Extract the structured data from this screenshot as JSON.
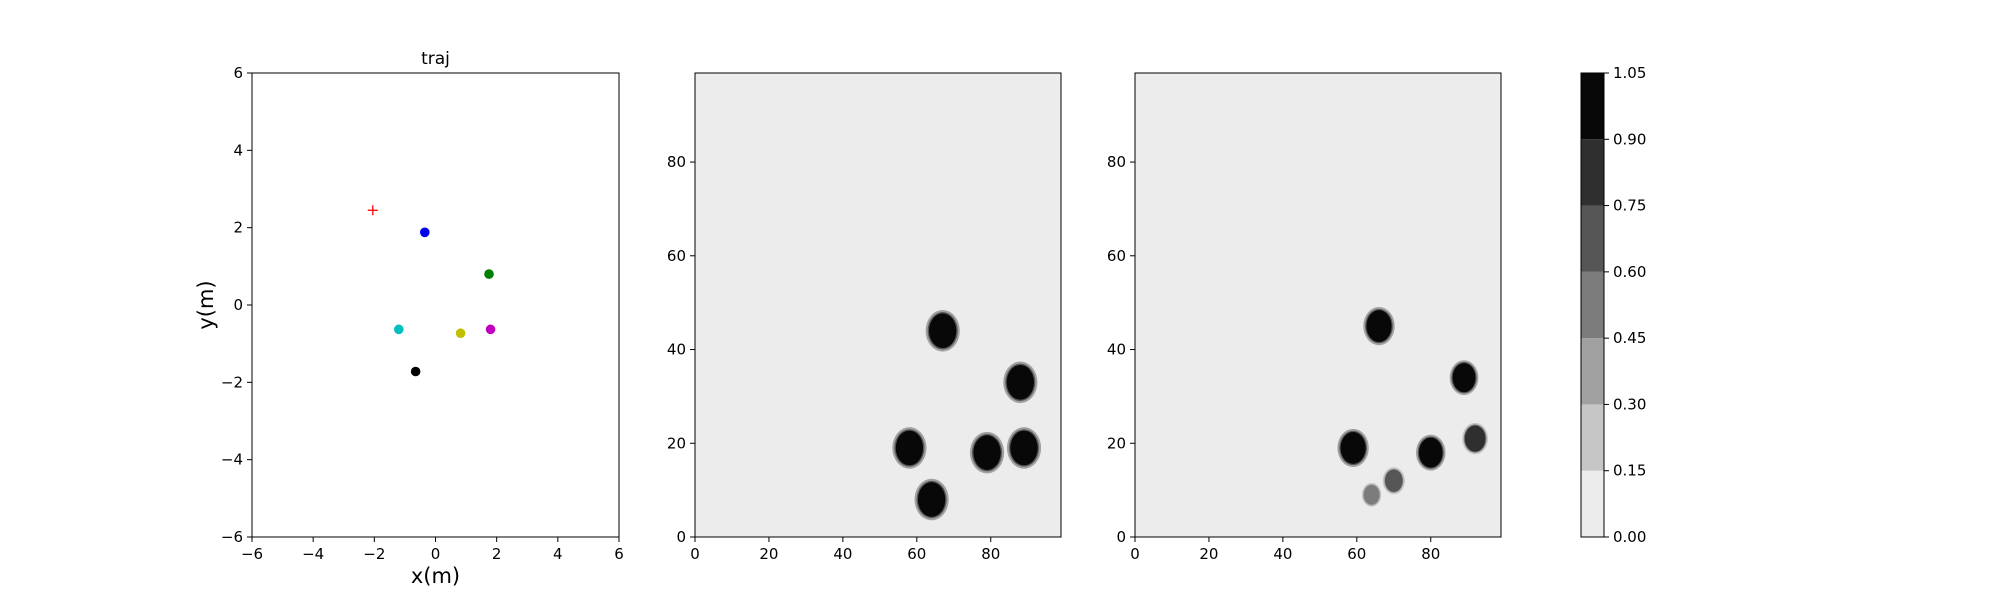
{
  "chart_data": [
    {
      "type": "scatter",
      "title": "traj",
      "xlabel": "x(m)",
      "ylabel": "y(m)",
      "xlim": [
        -6,
        6
      ],
      "ylim": [
        -6,
        6
      ],
      "xticks": [
        -6,
        -4,
        -2,
        0,
        2,
        4,
        6
      ],
      "yticks": [
        -6,
        -4,
        -2,
        0,
        2,
        4,
        6
      ],
      "tick_labels_x": [
        "−6",
        "−4",
        "−2",
        "0",
        "2",
        "4",
        "6"
      ],
      "tick_labels_y": [
        "−6",
        "−4",
        "−2",
        "0",
        "2",
        "4",
        "6"
      ],
      "grid": false,
      "goal": {
        "x": -2.05,
        "y": 2.45,
        "color": "#ff0000",
        "marker": "plus"
      },
      "points": [
        {
          "x": -0.35,
          "y": 1.88,
          "color": "#0000ee"
        },
        {
          "x": 1.75,
          "y": 0.8,
          "color": "#007f00"
        },
        {
          "x": -1.2,
          "y": -0.63,
          "color": "#00bfbf"
        },
        {
          "x": 0.82,
          "y": -0.73,
          "color": "#bfbf00"
        },
        {
          "x": 1.8,
          "y": -0.63,
          "color": "#bf00bf"
        },
        {
          "x": -0.65,
          "y": -1.72,
          "color": "#000000"
        }
      ]
    },
    {
      "type": "heatmap",
      "xlim": [
        0,
        99
      ],
      "ylim": [
        0,
        99
      ],
      "xticks": [
        0,
        20,
        40,
        60,
        80
      ],
      "yticks": [
        0,
        20,
        40,
        60,
        80
      ],
      "background_value": 0.0,
      "blobs": [
        {
          "x": 67,
          "y": 44,
          "r": 3.7,
          "value": 1.0
        },
        {
          "x": 88,
          "y": 33,
          "r": 3.7,
          "value": 1.0
        },
        {
          "x": 58,
          "y": 19,
          "r": 3.7,
          "value": 1.0
        },
        {
          "x": 79,
          "y": 18,
          "r": 3.7,
          "value": 1.0
        },
        {
          "x": 89,
          "y": 19,
          "r": 3.7,
          "value": 1.0
        },
        {
          "x": 64,
          "y": 8,
          "r": 3.7,
          "value": 1.0
        }
      ]
    },
    {
      "type": "heatmap",
      "xlim": [
        0,
        99
      ],
      "ylim": [
        0,
        99
      ],
      "xticks": [
        0,
        20,
        40,
        60,
        80
      ],
      "yticks": [
        0,
        20,
        40,
        60,
        80
      ],
      "background_value": 0.0,
      "blobs": [
        {
          "x": 66,
          "y": 45,
          "r": 3.4,
          "value": 1.0
        },
        {
          "x": 89,
          "y": 34,
          "r": 3.1,
          "value": 1.0
        },
        {
          "x": 59,
          "y": 19,
          "r": 3.4,
          "value": 1.0
        },
        {
          "x": 80,
          "y": 18,
          "r": 3.2,
          "value": 1.0
        },
        {
          "x": 92,
          "y": 21,
          "r": 2.8,
          "value": 0.8
        },
        {
          "x": 70,
          "y": 12,
          "r": 2.4,
          "value": 0.7
        },
        {
          "x": 64,
          "y": 9,
          "r": 2.1,
          "value": 0.55
        }
      ]
    }
  ],
  "colorbar": {
    "levels": [
      0.0,
      0.15,
      0.3,
      0.45,
      0.6,
      0.75,
      0.9,
      1.05
    ],
    "tick_labels": [
      "0.00",
      "0.15",
      "0.30",
      "0.45",
      "0.60",
      "0.75",
      "0.90",
      "1.05"
    ],
    "colors": [
      "#ececec",
      "#c6c6c6",
      "#a1a1a1",
      "#7c7c7c",
      "#565656",
      "#2f2f2f",
      "#080808"
    ]
  }
}
